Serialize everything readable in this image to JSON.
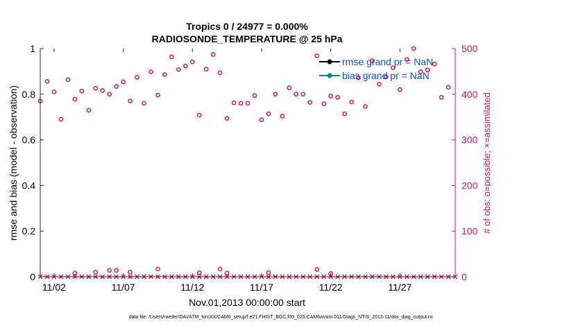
{
  "chart_data": {
    "type": "scatter",
    "title_line1": "Tropics 0 / 24977 = 0.000%",
    "title_line2": "RADIOSONDE_TEMPERATURE @ 25 hPa",
    "ylabel_left": "rmse and bias (model - observation)",
    "ylabel_right": "# of obs: o=possible; ×=assimilated",
    "xlabel": "Nov.01,2013 00:00:00 start",
    "footer": "data file: /Users/raeder/DAI/ATM_forcXX/CAM6_setup/f.e21.FHIST_BGC.f09_025.CAM6assim.011/Diags_NTrS_2013-11/obs_diag_output.nc",
    "xlim": [
      1,
      31
    ],
    "ylim_left": [
      0,
      1
    ],
    "ylim_right": [
      0,
      500
    ],
    "x_ticks": [
      2,
      7,
      12,
      17,
      22,
      27
    ],
    "x_tick_labels": [
      "11/02",
      "11/07",
      "11/12",
      "11/17",
      "11/22",
      "11/27"
    ],
    "y_left_ticks": [
      0,
      0.2,
      0.4,
      0.6,
      0.8,
      1
    ],
    "y_left_tick_labels": [
      "0",
      "0.2",
      "0.4",
      "0.6",
      "0.8",
      "1"
    ],
    "y_right_ticks": [
      0,
      100,
      200,
      300,
      400,
      500
    ],
    "y_right_tick_labels": [
      "0",
      "100",
      "200",
      "300",
      "400",
      "500"
    ],
    "legend": {
      "placement": "top-right",
      "entries": [
        {
          "label": "rmse grand pr = NaN",
          "color": "#000000"
        },
        {
          "label": "bias grand pr = NaN",
          "color": "#00827f"
        }
      ]
    },
    "colors": {
      "obs": "#d6155a",
      "legend_text": "#0b4fe0",
      "axis": "#262626"
    },
    "series": [
      {
        "name": "possible",
        "marker": "o",
        "x": [
          1.0,
          1.5,
          2.0,
          2.5,
          3.0,
          3.5,
          4.0,
          4.5,
          5.0,
          5.5,
          6.0,
          6.5,
          7.0,
          7.5,
          8.0,
          8.5,
          9.0,
          9.5,
          10.0,
          10.5,
          11.0,
          11.5,
          12.0,
          12.5,
          13.0,
          13.5,
          14.0,
          14.5,
          15.0,
          15.5,
          16.0,
          16.5,
          17.0,
          17.5,
          18.0,
          18.5,
          19.0,
          19.5,
          20.0,
          20.5,
          21.0,
          21.5,
          22.0,
          22.5,
          23.0,
          23.5,
          24.0,
          24.5,
          25.0,
          25.5,
          26.0,
          26.5,
          27.0,
          27.5,
          28.0,
          28.5,
          29.0,
          29.5,
          30.0,
          30.5
        ],
        "y": [
          385,
          428,
          405,
          345,
          432,
          389,
          407,
          365,
          413,
          408,
          400,
          417,
          427,
          385,
          437,
          380,
          449,
          398,
          443,
          482,
          454,
          462,
          471,
          354,
          455,
          487,
          447,
          347,
          381,
          380,
          380,
          397,
          344,
          357,
          400,
          352,
          414,
          400,
          400,
          382,
          484,
          379,
          396,
          393,
          357,
          383,
          436,
          373,
          473,
          422,
          438,
          458,
          410,
          476,
          500,
          449,
          453,
          466,
          393,
          415
        ]
      },
      {
        "name": "possible-low",
        "marker": "o",
        "x": [
          3.5,
          5.0,
          6.0,
          6.5,
          7.5,
          9.5,
          12.5,
          14.0,
          14.5,
          17.5,
          21.0,
          22.0
        ],
        "y": [
          8,
          10,
          14,
          14,
          10,
          17,
          9,
          17,
          8,
          9,
          16,
          7
        ]
      },
      {
        "name": "assimilated",
        "marker": "x",
        "x": [
          1.0,
          1.5,
          2.0,
          2.5,
          3.0,
          3.5,
          4.0,
          4.5,
          5.0,
          5.5,
          6.0,
          6.5,
          7.0,
          7.5,
          8.0,
          8.5,
          9.0,
          9.5,
          10.0,
          10.5,
          11.0,
          11.5,
          12.0,
          12.5,
          13.0,
          13.5,
          14.0,
          14.5,
          15.0,
          15.5,
          16.0,
          16.5,
          17.0,
          17.5,
          18.0,
          18.5,
          19.0,
          19.5,
          20.0,
          20.5,
          21.0,
          21.5,
          22.0,
          22.5,
          23.0,
          23.5,
          24.0,
          24.5,
          25.0,
          25.5,
          26.0,
          26.5,
          27.0,
          27.5,
          28.0,
          28.5,
          29.0,
          29.5,
          30.0,
          30.5,
          31.0
        ],
        "y": [
          0,
          0,
          0,
          0,
          0,
          0,
          0,
          0,
          0,
          0,
          0,
          0,
          0,
          0,
          0,
          0,
          0,
          0,
          0,
          0,
          0,
          0,
          0,
          0,
          0,
          0,
          0,
          0,
          0,
          0,
          0,
          0,
          0,
          0,
          0,
          0,
          0,
          0,
          0,
          0,
          0,
          0,
          0,
          0,
          0,
          0,
          0,
          0,
          0,
          0,
          0,
          0,
          0,
          0,
          0,
          0,
          0,
          0,
          0,
          0,
          0
        ]
      }
    ]
  }
}
